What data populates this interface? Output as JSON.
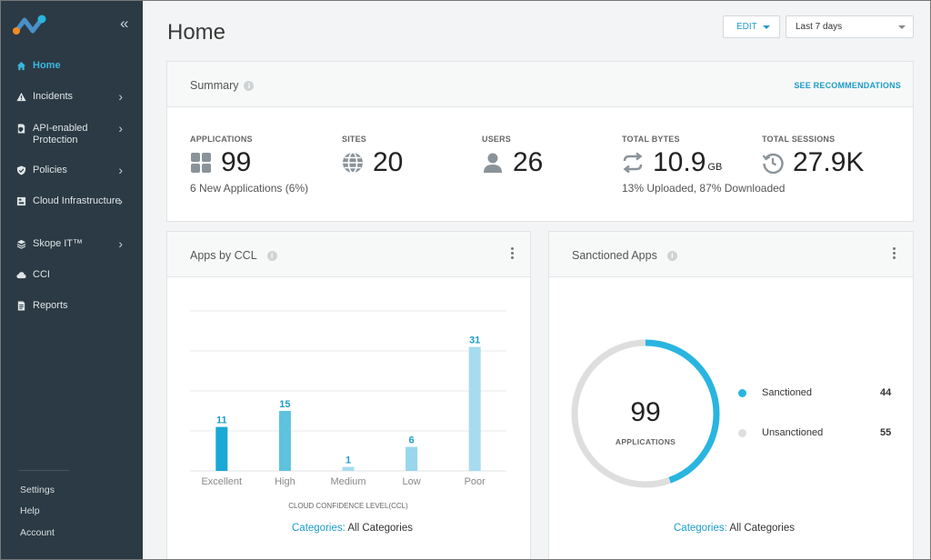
{
  "sidebar": {
    "logo_icon": "netskope-logo-icon",
    "collapse_glyph": "«",
    "items": [
      {
        "label": "Home",
        "icon": "home-icon",
        "has_chevron": false,
        "active": true
      },
      {
        "label": "Incidents",
        "icon": "warning-icon",
        "has_chevron": true,
        "active": false
      },
      {
        "label": "API-enabled Protection",
        "icon": "document-shield-icon",
        "has_chevron": true,
        "active": false
      },
      {
        "label": "Policies",
        "icon": "shield-icon",
        "has_chevron": true,
        "active": false
      },
      {
        "label": "Cloud Infrastructure",
        "icon": "cloud-infrastructure-icon",
        "has_chevron": true,
        "active": false
      },
      {
        "label": "Skope IT™",
        "icon": "layers-icon",
        "has_chevron": true,
        "active": false
      },
      {
        "label": "CCI",
        "icon": "cloud-icon",
        "has_chevron": false,
        "active": false
      },
      {
        "label": "Reports",
        "icon": "report-icon",
        "has_chevron": false,
        "active": false
      }
    ],
    "bottom": [
      "Settings",
      "Help",
      "Account"
    ]
  },
  "header": {
    "title": "Home",
    "edit_label": "EDIT",
    "range_value": "Last 7 days"
  },
  "summary": {
    "title": "Summary",
    "link": "SEE RECOMMENDATIONS",
    "stats": [
      {
        "label": "APPLICATIONS",
        "value": "99",
        "unit": "",
        "sub": "6 New Applications (6%)",
        "icon": "grid-icon"
      },
      {
        "label": "SITES",
        "value": "20",
        "unit": "",
        "sub": "",
        "icon": "globe-icon"
      },
      {
        "label": "USERS",
        "value": "26",
        "unit": "",
        "sub": "",
        "icon": "user-icon"
      },
      {
        "label": "TOTAL BYTES",
        "value": "10.9",
        "unit": "GB",
        "sub": "13% Uploaded, 87% Downloaded",
        "icon": "transfer-icon"
      },
      {
        "label": "TOTAL SESSIONS",
        "value": "27.9K",
        "unit": "",
        "sub": "",
        "icon": "history-icon"
      }
    ]
  },
  "apps_by_ccl": {
    "title": "Apps by CCL",
    "categories_key": "Categories:",
    "categories_value": "All Categories"
  },
  "sanctioned": {
    "title": "Sanctioned Apps",
    "center_value": "99",
    "center_label": "APPLICATIONS",
    "items": [
      {
        "label": "Sanctioned",
        "value": "44",
        "color": "#29b5e0"
      },
      {
        "label": "Unsanctioned",
        "value": "55",
        "color": "#dedede"
      }
    ],
    "categories_key": "Categories:",
    "categories_value": "All Categories"
  },
  "colors": {
    "accent": "#1c9cc8",
    "sidebar_bg": "#2b3a44",
    "bar_colors": [
      "#1aa8d6",
      "#5fc3e0",
      "#a6dcee",
      "#97d6ec",
      "#a6dcee"
    ]
  },
  "chart_data": {
    "type": "bar",
    "categories": [
      "Excellent",
      "High",
      "Medium",
      "Low",
      "Poor"
    ],
    "values": [
      11,
      15,
      1,
      6,
      31
    ],
    "xlabel": "CLOUD CONFIDENCE LEVEL(CCL)",
    "ylabel": "",
    "ylim": [
      0,
      40
    ],
    "grid": true
  }
}
